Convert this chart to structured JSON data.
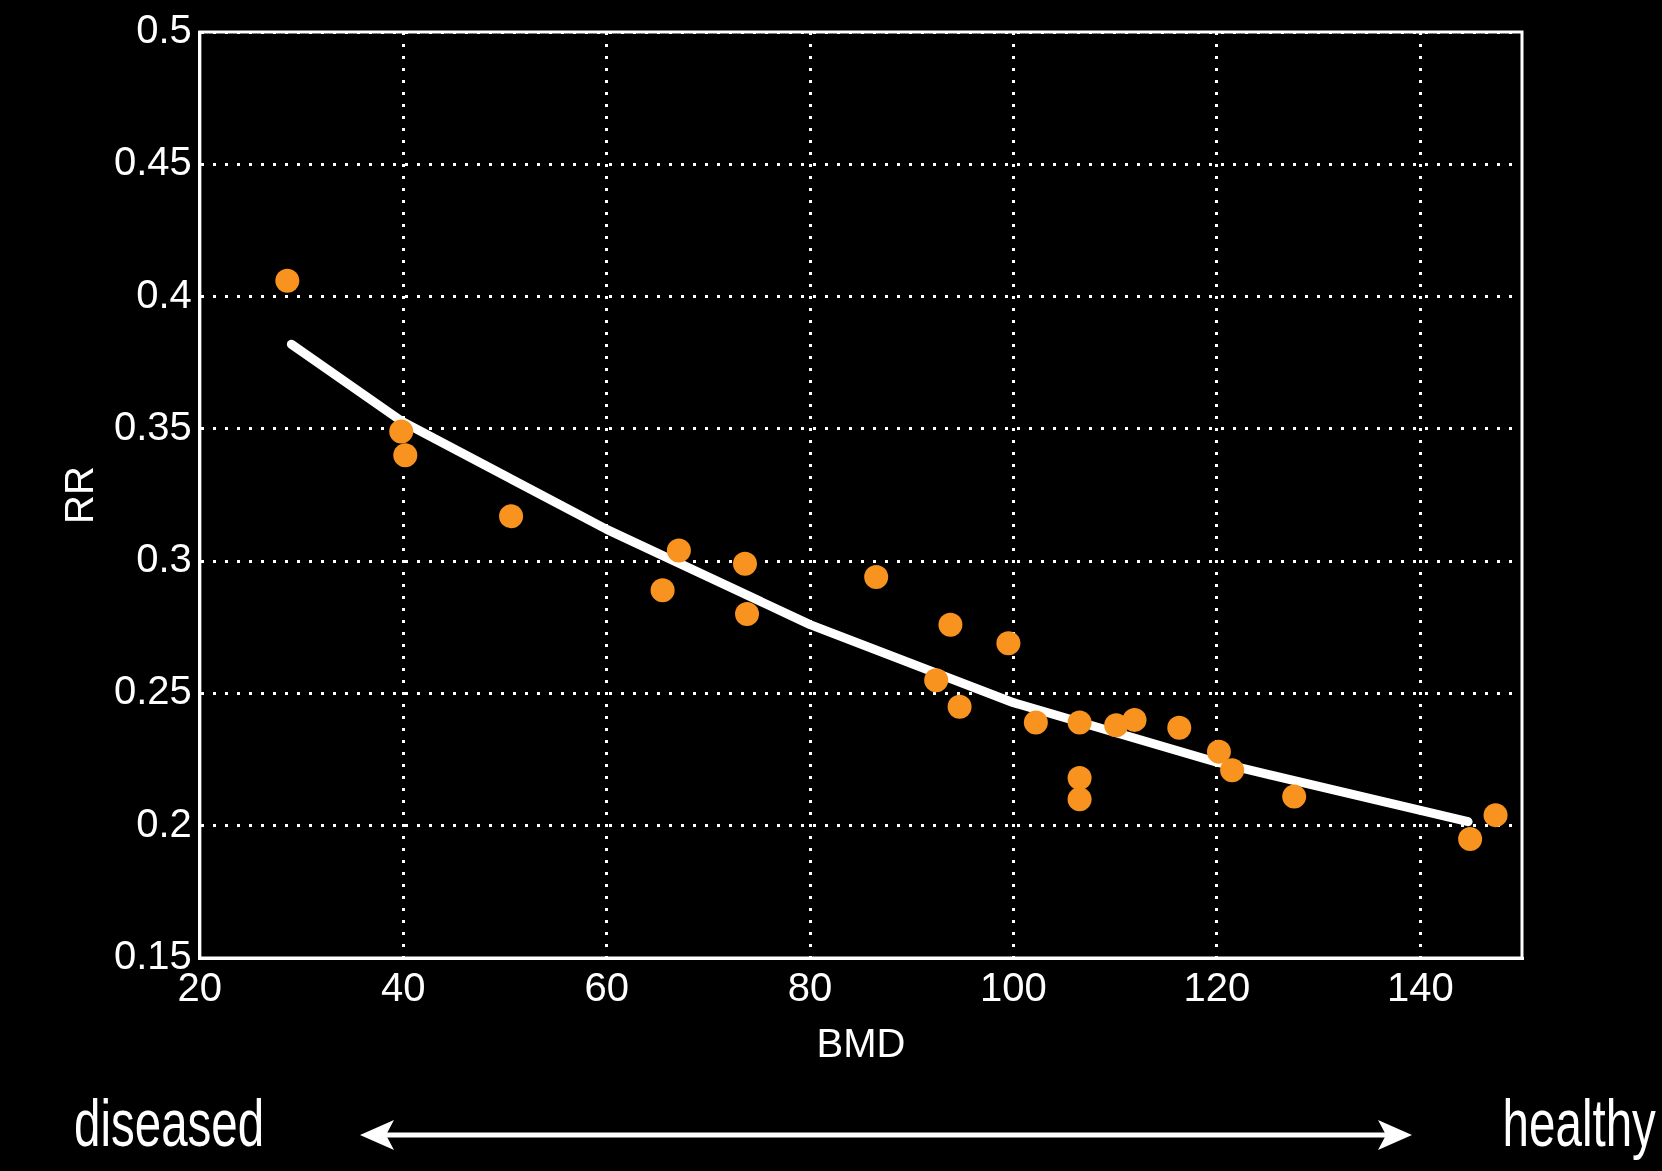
{
  "chart_data": {
    "type": "scatter",
    "xlabel": "BMD",
    "ylabel": "RR",
    "xlim": [
      20,
      150
    ],
    "xticks": [
      20,
      40,
      60,
      80,
      100,
      120,
      140
    ],
    "ylim": [
      0.15,
      0.5
    ],
    "yticks": [
      0.15,
      0.2,
      0.25,
      0.3,
      0.35,
      0.4,
      0.45,
      0.5
    ],
    "grid": true,
    "legend": false,
    "marker": "circle",
    "series": [
      {
        "type": "line",
        "color": "#ffffff",
        "line_style": "solid",
        "marker": "none",
        "x": [
          29,
          39.8,
          60,
          80,
          100,
          120,
          144.7
        ],
        "values": [
          0.382,
          0.353,
          0.312,
          0.276,
          0.2465,
          0.224,
          0.2015
        ]
      },
      {
        "type": "scatter",
        "color": "#f7931e",
        "x": [
          28.6,
          39.8,
          40.2,
          50.6,
          65.5,
          67.1,
          73.6,
          73.8,
          86.5,
          92.4,
          93.8,
          94.7,
          99.5,
          102.2,
          106.5,
          106.5,
          106.5,
          110.1,
          111.9,
          116.3,
          120.2,
          121.5,
          127.6,
          144.9,
          147.4
        ],
        "values": [
          0.406,
          0.349,
          0.34,
          0.317,
          0.289,
          0.304,
          0.299,
          0.28,
          0.294,
          0.255,
          0.276,
          0.245,
          0.269,
          0.239,
          0.239,
          0.218,
          0.21,
          0.238,
          0.24,
          0.237,
          0.228,
          0.221,
          0.211,
          0.195,
          0.204
        ]
      }
    ],
    "annotations": [
      "diseased",
      "healthy"
    ]
  }
}
